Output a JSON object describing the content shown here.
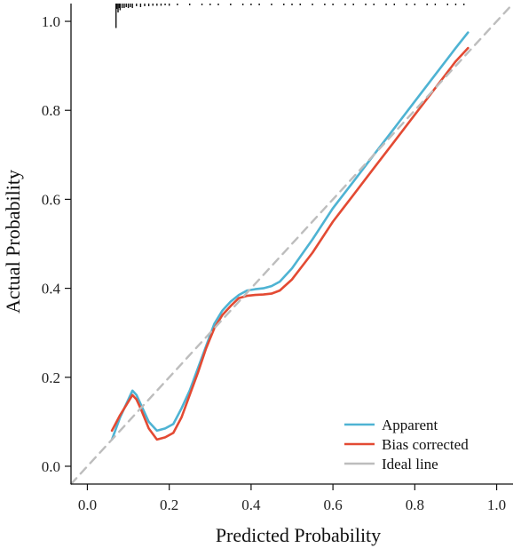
{
  "chart_data": {
    "type": "line",
    "title": "",
    "xlabel": "Predicted Probability",
    "ylabel": "Actual Probability",
    "xlim": [
      -0.04,
      1.04
    ],
    "ylim": [
      -0.04,
      1.04
    ],
    "x_ticks": [
      0.0,
      0.2,
      0.4,
      0.6,
      0.8,
      1.0
    ],
    "x_tick_labels": [
      "0.0",
      "0.2",
      "0.4",
      "0.6",
      "0.8",
      "1.0"
    ],
    "y_ticks": [
      0.0,
      0.2,
      0.4,
      0.6,
      0.8,
      1.0
    ],
    "y_tick_labels": [
      "0.0",
      "0.2",
      "0.4",
      "0.6",
      "0.8",
      "1.0"
    ],
    "grid": false,
    "legend_position": "bottom-right",
    "series": [
      {
        "name": "Apparent",
        "color": "#4eb3d3",
        "style": "solid",
        "x": [
          0.06,
          0.08,
          0.1,
          0.11,
          0.12,
          0.13,
          0.15,
          0.17,
          0.19,
          0.21,
          0.23,
          0.25,
          0.27,
          0.29,
          0.31,
          0.33,
          0.35,
          0.37,
          0.39,
          0.41,
          0.43,
          0.45,
          0.47,
          0.5,
          0.55,
          0.6,
          0.65,
          0.7,
          0.75,
          0.8,
          0.85,
          0.9,
          0.93
        ],
        "y": [
          0.06,
          0.11,
          0.15,
          0.17,
          0.16,
          0.14,
          0.1,
          0.08,
          0.085,
          0.095,
          0.13,
          0.17,
          0.22,
          0.27,
          0.32,
          0.35,
          0.37,
          0.385,
          0.395,
          0.398,
          0.4,
          0.405,
          0.415,
          0.445,
          0.51,
          0.58,
          0.64,
          0.7,
          0.76,
          0.82,
          0.88,
          0.94,
          0.975
        ]
      },
      {
        "name": "Bias corrected",
        "color": "#e34a33",
        "style": "solid",
        "x": [
          0.06,
          0.08,
          0.1,
          0.11,
          0.12,
          0.13,
          0.15,
          0.17,
          0.19,
          0.21,
          0.23,
          0.25,
          0.27,
          0.29,
          0.31,
          0.33,
          0.35,
          0.37,
          0.39,
          0.41,
          0.43,
          0.45,
          0.47,
          0.5,
          0.55,
          0.6,
          0.65,
          0.7,
          0.75,
          0.8,
          0.85,
          0.9,
          0.93
        ],
        "y": [
          0.08,
          0.115,
          0.145,
          0.16,
          0.15,
          0.13,
          0.085,
          0.06,
          0.065,
          0.075,
          0.11,
          0.16,
          0.21,
          0.265,
          0.31,
          0.34,
          0.36,
          0.378,
          0.383,
          0.385,
          0.386,
          0.388,
          0.395,
          0.42,
          0.48,
          0.55,
          0.61,
          0.67,
          0.73,
          0.79,
          0.85,
          0.91,
          0.94
        ]
      },
      {
        "name": "Ideal line",
        "color": "#bdbdbd",
        "style": "dashed",
        "x": [
          -0.04,
          1.04
        ],
        "y": [
          -0.04,
          1.04
        ]
      }
    ],
    "rug": {
      "x": [
        0.07,
        0.072,
        0.075,
        0.078,
        0.08,
        0.085,
        0.09,
        0.095,
        0.1,
        0.105,
        0.11,
        0.12,
        0.13,
        0.14,
        0.15,
        0.16,
        0.17,
        0.18,
        0.19,
        0.2,
        0.22,
        0.25,
        0.28,
        0.3,
        0.32,
        0.35,
        0.38,
        0.4,
        0.42,
        0.45,
        0.48,
        0.5,
        0.52,
        0.55,
        0.58,
        0.6,
        0.63,
        0.65,
        0.68,
        0.7,
        0.73,
        0.75,
        0.78,
        0.8,
        0.83,
        0.85,
        0.88,
        0.9,
        0.92
      ],
      "h": [
        0.055,
        0.012,
        0.02,
        0.01,
        0.015,
        0.01,
        0.01,
        0.008,
        0.01,
        0.008,
        0.01,
        0.006,
        0.008,
        0.006,
        0.006,
        0.005,
        0.005,
        0.005,
        0.004,
        0.005,
        0.004,
        0.004,
        0.004,
        0.004,
        0.004,
        0.004,
        0.004,
        0.004,
        0.004,
        0.004,
        0.004,
        0.004,
        0.004,
        0.004,
        0.004,
        0.004,
        0.004,
        0.004,
        0.004,
        0.004,
        0.004,
        0.004,
        0.004,
        0.004,
        0.004,
        0.004,
        0.004,
        0.004,
        0.004
      ]
    }
  }
}
